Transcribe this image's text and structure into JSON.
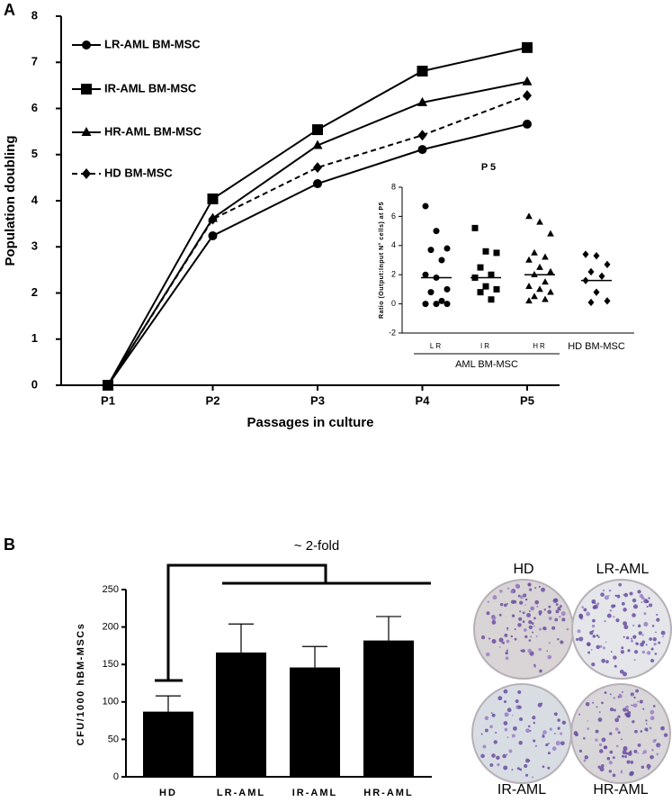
{
  "panel_labels": [
    "A",
    "B"
  ],
  "chart_data": [
    {
      "type": "line",
      "xlabel": "Passages in culture",
      "ylabel": "Population doubling",
      "categories": [
        "P1",
        "P2",
        "P3",
        "P4",
        "P5"
      ],
      "ylim": [
        0,
        8
      ],
      "yticks": [
        0,
        1,
        2,
        3,
        4,
        5,
        6,
        7,
        8
      ],
      "series": [
        {
          "name": "LR-AML BM-MSC",
          "color": "#000000",
          "marker": "circle",
          "dashed": false,
          "values": [
            0,
            3.24,
            4.37,
            5.11,
            5.66
          ]
        },
        {
          "name": "IR-AML BM-MSC",
          "color": "#000000",
          "marker": "square",
          "dashed": false,
          "values": [
            0,
            4.04,
            5.54,
            6.81,
            7.32
          ]
        },
        {
          "name": "HR-AML BM-MSC",
          "color": "#000000",
          "marker": "triangle",
          "dashed": false,
          "values": [
            0,
            3.62,
            5.2,
            6.13,
            6.58
          ]
        },
        {
          "name": "HD BM-MSC",
          "color": "#000000",
          "marker": "diamond",
          "dashed": true,
          "values": [
            0,
            3.6,
            4.72,
            5.42,
            6.28
          ]
        }
      ]
    },
    {
      "type": "strip",
      "title": "P 5",
      "ylabel": "Ratio (Output:Input N° cells) at P5",
      "categories": [
        "LR",
        "IR",
        "HR",
        "HD BM-MSC"
      ],
      "group_label": "AML BM-MSC",
      "ylim": [
        -2,
        8
      ],
      "yticks": [
        -2,
        0,
        2,
        4,
        6,
        8
      ],
      "groups": [
        {
          "marker": "circle",
          "mean": 1.8,
          "values": [
            6.7,
            5.0,
            3.8,
            3.7,
            3.0,
            2.0,
            1.8,
            1.0,
            0.8,
            0.2,
            0,
            0,
            0
          ]
        },
        {
          "marker": "square",
          "mean": 1.8,
          "values": [
            5.2,
            3.6,
            3.5,
            2.5,
            2.0,
            1.8,
            1.2,
            1.0,
            0.8,
            0.3
          ]
        },
        {
          "marker": "triangle",
          "mean": 2.0,
          "values": [
            6.0,
            5.6,
            4.8,
            3.5,
            3.2,
            3.0,
            2.5,
            2.2,
            2.0,
            1.5,
            1.2,
            1.0,
            0.8,
            0.5,
            0.3,
            0.2
          ]
        },
        {
          "marker": "diamond",
          "mean": 1.6,
          "values": [
            3.4,
            3.3,
            2.7,
            2.2,
            1.9,
            1.6,
            0.8,
            0.2,
            0.1
          ]
        }
      ]
    },
    {
      "type": "bar",
      "ylabel": "CFU/1000 hBM-MSCs",
      "annotation": "~ 2-fold",
      "categories": [
        "HD",
        "LR-AML",
        "IR-AML",
        "HR-AML"
      ],
      "values": [
        87,
        166,
        146,
        182
      ],
      "errors": [
        21,
        38,
        28,
        32
      ],
      "color": "#000000",
      "ylim": [
        0,
        250
      ],
      "yticks": [
        0,
        50,
        100,
        150,
        200,
        250
      ]
    }
  ],
  "images": [
    {
      "label": "HD"
    },
    {
      "label": "LR-AML"
    },
    {
      "label": "IR-AML"
    },
    {
      "label": "HR-AML"
    }
  ]
}
